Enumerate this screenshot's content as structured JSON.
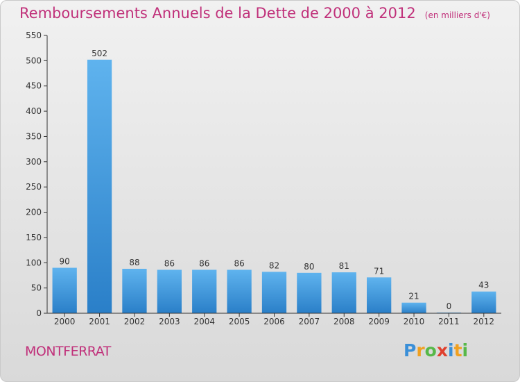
{
  "title": "Remboursements Annuels de la Dette de 2000 à 2012",
  "subtitle": "(en milliers d'€)",
  "location": "MONTFERRAT",
  "logo": {
    "text": "Proxiti",
    "letters": [
      {
        "ch": "P",
        "color": "#3a8fd8"
      },
      {
        "ch": "r",
        "color": "#f0a020"
      },
      {
        "ch": "o",
        "color": "#56b848"
      },
      {
        "ch": "x",
        "color": "#e0402e"
      },
      {
        "ch": "i",
        "color": "#3a8fd8"
      },
      {
        "ch": "t",
        "color": "#f0a020"
      },
      {
        "ch": "i",
        "color": "#56b848"
      }
    ]
  },
  "colors": {
    "title": "#c0307a",
    "bar_top": "#5fb3ee",
    "bar_bottom": "#2a7fc8",
    "axis": "#333333",
    "grid": "#cfcfcf"
  },
  "chart_data": {
    "type": "bar",
    "title": "Remboursements Annuels de la Dette de 2000 à 2012",
    "subtitle": "(en milliers d'€)",
    "xlabel": "",
    "ylabel": "",
    "categories": [
      "2000",
      "2001",
      "2002",
      "2003",
      "2004",
      "2005",
      "2006",
      "2007",
      "2008",
      "2009",
      "2010",
      "2011",
      "2012"
    ],
    "values": [
      90,
      502,
      88,
      86,
      86,
      86,
      82,
      80,
      81,
      71,
      21,
      0,
      43
    ],
    "data_labels": [
      "90",
      "502",
      "88",
      "86",
      "86",
      "86",
      "82",
      "80",
      "81",
      "71",
      "21",
      "0",
      "43"
    ],
    "ylim": [
      0,
      550
    ],
    "yticks": [
      0,
      50,
      100,
      150,
      200,
      250,
      300,
      350,
      400,
      450,
      500,
      550
    ],
    "grid": false,
    "legend": "none"
  }
}
